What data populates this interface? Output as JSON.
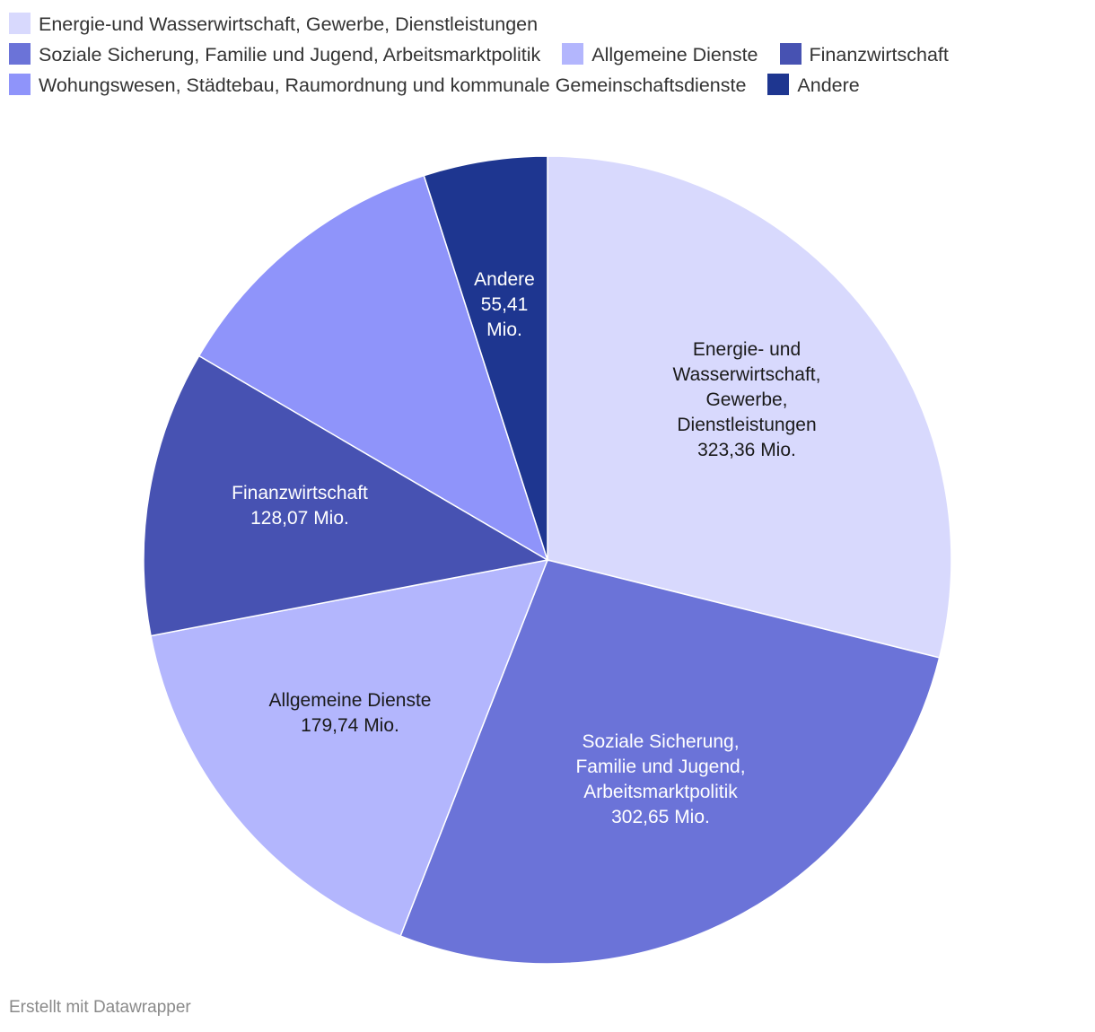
{
  "chart_data": {
    "type": "pie",
    "legend_position": "top",
    "legend": [
      "Energie-und Wasserwirtschaft, Gewerbe, Dienstleistungen",
      "Soziale Sicherung, Familie und Jugend, Arbeitsmarktpolitik",
      "Allgemeine Dienste",
      "Finanzwirtschaft",
      "Wohungswesen, Städtebau, Raumordnung und kommunale Gemeinschaftsdienste",
      "Andere"
    ],
    "slices": [
      {
        "label_lines": [
          "Energie- und",
          "Wasserwirtschaft,",
          "Gewerbe,",
          "Dienstleistungen"
        ],
        "value": 323.36,
        "value_label": "323,36 Mio.",
        "color": "#d8d9fd",
        "text_color": "#1a1a1a",
        "show_label": true
      },
      {
        "label_lines": [
          "Soziale Sicherung,",
          "Familie und Jugend,",
          "Arbeitsmarktpolitik"
        ],
        "value": 302.65,
        "value_label": "302,65 Mio.",
        "color": "#6b73d8",
        "text_color": "#ffffff",
        "show_label": true
      },
      {
        "label_lines": [
          "Allgemeine Dienste"
        ],
        "value": 179.74,
        "value_label": "179,74 Mio.",
        "color": "#b3b6fd",
        "text_color": "#1a1a1a",
        "show_label": true
      },
      {
        "label_lines": [
          "Finanzwirtschaft"
        ],
        "value": 128.07,
        "value_label": "128,07 Mio.",
        "color": "#4752b2",
        "text_color": "#ffffff",
        "show_label": true
      },
      {
        "label_lines": [],
        "value": 130.0,
        "value_label": "",
        "color": "#8f94fa",
        "text_color": "#ffffff",
        "show_label": false
      },
      {
        "label_lines": [
          "Andere"
        ],
        "value": 55.41,
        "value_label_lines": [
          "55,41",
          "Mio."
        ],
        "value_label": "55,41 Mio.",
        "color": "#1e3690",
        "text_color": "#ffffff",
        "show_label": true
      }
    ]
  },
  "footer": {
    "credit": "Erstellt mit Datawrapper"
  }
}
